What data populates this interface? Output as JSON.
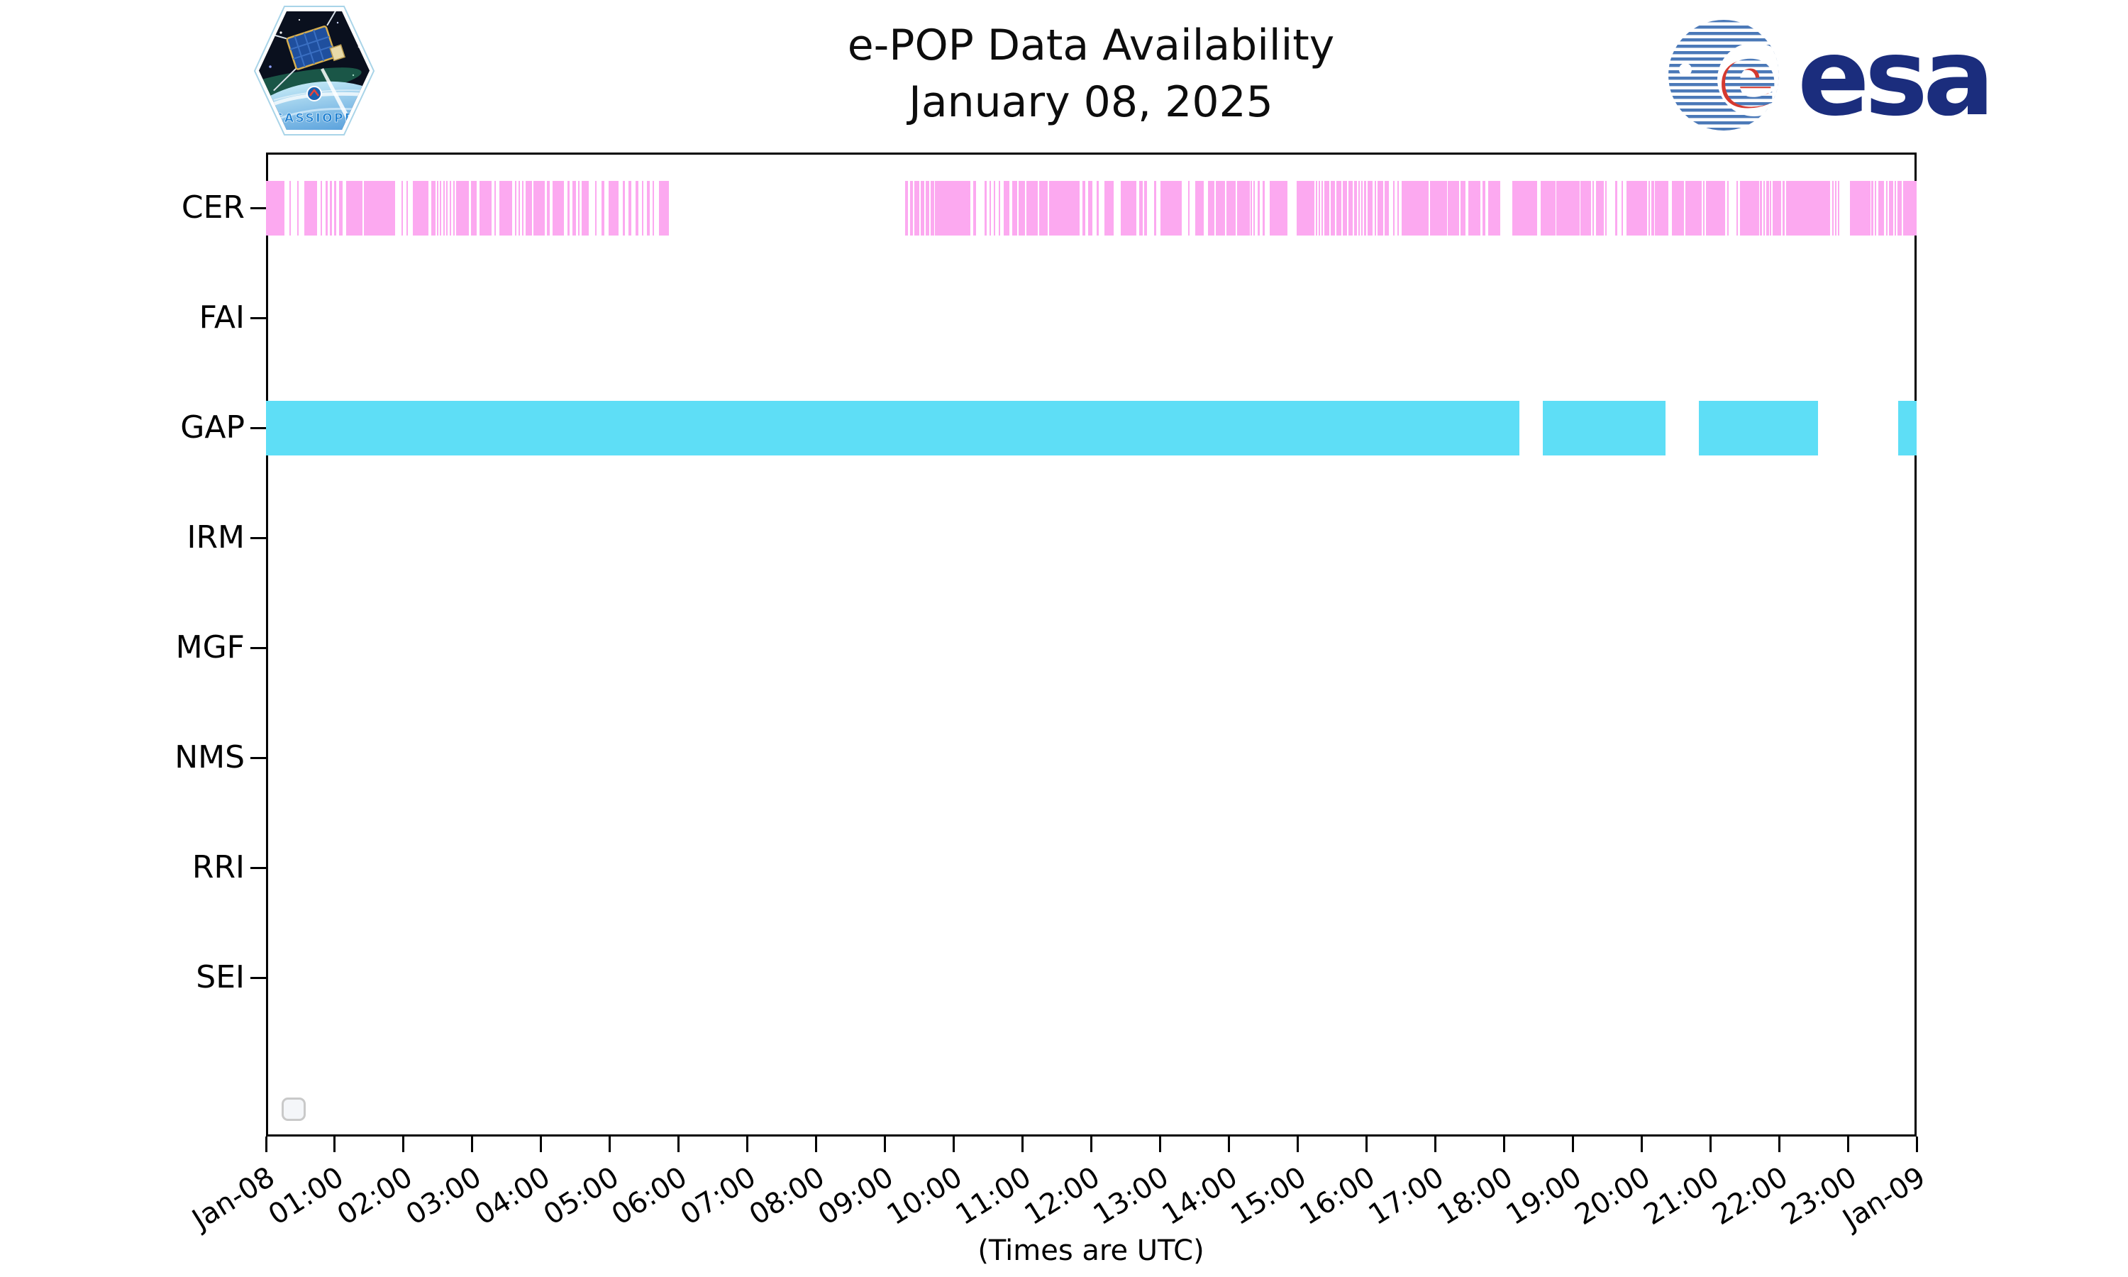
{
  "header": {
    "title_line1": "e-POP Data Availability",
    "title_line2": "January 08, 2025"
  },
  "logos": {
    "cassiope_patch_label": "CASSIOPE",
    "esa_wordmark": "esa",
    "esa_navy": "#1b2d7d",
    "esa_globe_blue": "#4b79b8",
    "cassiope_text_blue": "#1d7fd0"
  },
  "footer": {
    "xlabel": "(Times are UTC)"
  },
  "chart_data": {
    "type": "availability-timeline",
    "title": "e-POP Data Availability",
    "subtitle": "January 08, 2025",
    "xlabel": "(Times are UTC)",
    "x_range_hours": [
      0,
      24
    ],
    "x_tick_labels": [
      "Jan-08",
      "01:00",
      "02:00",
      "03:00",
      "04:00",
      "05:00",
      "06:00",
      "07:00",
      "08:00",
      "09:00",
      "10:00",
      "11:00",
      "12:00",
      "13:00",
      "14:00",
      "15:00",
      "16:00",
      "17:00",
      "18:00",
      "19:00",
      "20:00",
      "21:00",
      "22:00",
      "23:00",
      "Jan-09"
    ],
    "instruments": [
      "CER",
      "FAI",
      "GAP",
      "IRM",
      "MGF",
      "NMS",
      "RRI",
      "SEI"
    ],
    "colors": {
      "CER": "#fca9f0",
      "GAP": "#5edef6"
    },
    "availability_hours": {
      "CER": [
        [
          0.0,
          0.27
        ],
        [
          0.34,
          0.36
        ],
        [
          0.45,
          0.48
        ],
        [
          0.56,
          0.74
        ],
        [
          0.79,
          0.82
        ],
        [
          0.87,
          0.9
        ],
        [
          0.93,
          0.96
        ],
        [
          0.99,
          1.02
        ],
        [
          1.06,
          1.11
        ],
        [
          1.16,
          1.4
        ],
        [
          1.42,
          1.88
        ],
        [
          1.97,
          1.99
        ],
        [
          2.04,
          2.06
        ],
        [
          2.13,
          2.36
        ],
        [
          2.4,
          2.47
        ],
        [
          2.49,
          2.51
        ],
        [
          2.53,
          2.55
        ],
        [
          2.58,
          2.6
        ],
        [
          2.62,
          2.64
        ],
        [
          2.67,
          2.69
        ],
        [
          2.72,
          2.74
        ],
        [
          2.76,
          2.95
        ],
        [
          2.98,
          3.06
        ],
        [
          3.1,
          3.28
        ],
        [
          3.32,
          3.34
        ],
        [
          3.39,
          3.58
        ],
        [
          3.62,
          3.64
        ],
        [
          3.67,
          3.69
        ],
        [
          3.72,
          3.74
        ],
        [
          3.77,
          3.87
        ],
        [
          3.89,
          4.05
        ],
        [
          4.08,
          4.13
        ],
        [
          4.17,
          4.33
        ],
        [
          4.38,
          4.41
        ],
        [
          4.45,
          4.51
        ],
        [
          4.54,
          4.56
        ],
        [
          4.59,
          4.69
        ],
        [
          4.78,
          4.81
        ],
        [
          4.88,
          4.92
        ],
        [
          4.98,
          5.13
        ],
        [
          5.19,
          5.22
        ],
        [
          5.27,
          5.31
        ],
        [
          5.37,
          5.41
        ],
        [
          5.47,
          5.49
        ],
        [
          5.54,
          5.58
        ],
        [
          5.62,
          5.64
        ],
        [
          5.71,
          5.86
        ],
        [
          9.29,
          9.33
        ],
        [
          9.36,
          9.41
        ],
        [
          9.43,
          9.5
        ],
        [
          9.52,
          9.57
        ],
        [
          9.59,
          9.64
        ],
        [
          9.66,
          9.72
        ],
        [
          9.73,
          10.24
        ],
        [
          10.28,
          10.33
        ],
        [
          10.45,
          10.48
        ],
        [
          10.52,
          10.54
        ],
        [
          10.58,
          10.6
        ],
        [
          10.65,
          10.67
        ],
        [
          10.73,
          10.81
        ],
        [
          10.85,
          10.92
        ],
        [
          10.94,
          11.04
        ],
        [
          11.06,
          11.22
        ],
        [
          11.24,
          11.37
        ],
        [
          11.39,
          11.83
        ],
        [
          11.87,
          11.91
        ],
        [
          11.95,
          12.02
        ],
        [
          12.08,
          12.11
        ],
        [
          12.19,
          12.33
        ],
        [
          12.43,
          12.66
        ],
        [
          12.7,
          12.75
        ],
        [
          12.77,
          12.81
        ],
        [
          12.91,
          12.94
        ],
        [
          13.0,
          13.31
        ],
        [
          13.41,
          13.43
        ],
        [
          13.51,
          13.64
        ],
        [
          13.7,
          13.79
        ],
        [
          13.81,
          13.94
        ],
        [
          13.96,
          14.1
        ],
        [
          14.12,
          14.3
        ],
        [
          14.32,
          14.34
        ],
        [
          14.36,
          14.38
        ],
        [
          14.42,
          14.45
        ],
        [
          14.49,
          14.52
        ],
        [
          14.59,
          14.85
        ],
        [
          14.99,
          15.24
        ],
        [
          15.26,
          15.28
        ],
        [
          15.3,
          15.32
        ],
        [
          15.35,
          15.37
        ],
        [
          15.39,
          15.46
        ],
        [
          15.48,
          15.54
        ],
        [
          15.56,
          15.64
        ],
        [
          15.66,
          15.72
        ],
        [
          15.74,
          15.8
        ],
        [
          15.82,
          15.86
        ],
        [
          15.88,
          15.9
        ],
        [
          15.92,
          15.94
        ],
        [
          15.96,
          16.0
        ],
        [
          16.02,
          16.09
        ],
        [
          16.12,
          16.14
        ],
        [
          16.16,
          16.24
        ],
        [
          16.26,
          16.33
        ],
        [
          16.39,
          16.41
        ],
        [
          16.45,
          16.47
        ],
        [
          16.51,
          16.9
        ],
        [
          16.92,
          17.17
        ],
        [
          17.18,
          17.35
        ],
        [
          17.37,
          17.44
        ],
        [
          17.48,
          17.66
        ],
        [
          17.69,
          17.73
        ],
        [
          17.77,
          17.95
        ],
        [
          18.12,
          18.48
        ],
        [
          18.53,
          18.75
        ],
        [
          18.76,
          19.1
        ],
        [
          19.11,
          19.27
        ],
        [
          19.29,
          19.31
        ],
        [
          19.34,
          19.45
        ],
        [
          19.47,
          19.49
        ],
        [
          19.62,
          19.65
        ],
        [
          19.71,
          19.73
        ],
        [
          19.78,
          20.08
        ],
        [
          20.1,
          20.12
        ],
        [
          20.14,
          20.18
        ],
        [
          20.19,
          20.39
        ],
        [
          20.44,
          20.62
        ],
        [
          20.64,
          20.88
        ],
        [
          20.9,
          20.92
        ],
        [
          20.94,
          21.22
        ],
        [
          21.25,
          21.27
        ],
        [
          21.38,
          21.4
        ],
        [
          21.43,
          21.71
        ],
        [
          21.72,
          21.75
        ],
        [
          21.77,
          21.79
        ],
        [
          21.81,
          21.85
        ],
        [
          21.86,
          21.88
        ],
        [
          21.91,
          22.03
        ],
        [
          22.05,
          22.08
        ],
        [
          22.1,
          22.74
        ],
        [
          22.77,
          22.79
        ],
        [
          22.81,
          22.83
        ],
        [
          22.85,
          22.87
        ],
        [
          23.03,
          23.33
        ],
        [
          23.34,
          23.37
        ],
        [
          23.39,
          23.41
        ],
        [
          23.44,
          23.53
        ],
        [
          23.56,
          23.58
        ],
        [
          23.6,
          23.66
        ],
        [
          23.68,
          23.7
        ],
        [
          23.72,
          23.78
        ],
        [
          23.8,
          24.0
        ]
      ],
      "FAI": [],
      "GAP": [
        [
          0.0,
          18.22
        ],
        [
          18.56,
          20.35
        ],
        [
          20.83,
          22.57
        ],
        [
          23.73,
          24.0
        ]
      ],
      "IRM": [],
      "MGF": [],
      "NMS": [],
      "RRI": [],
      "SEI": []
    }
  }
}
